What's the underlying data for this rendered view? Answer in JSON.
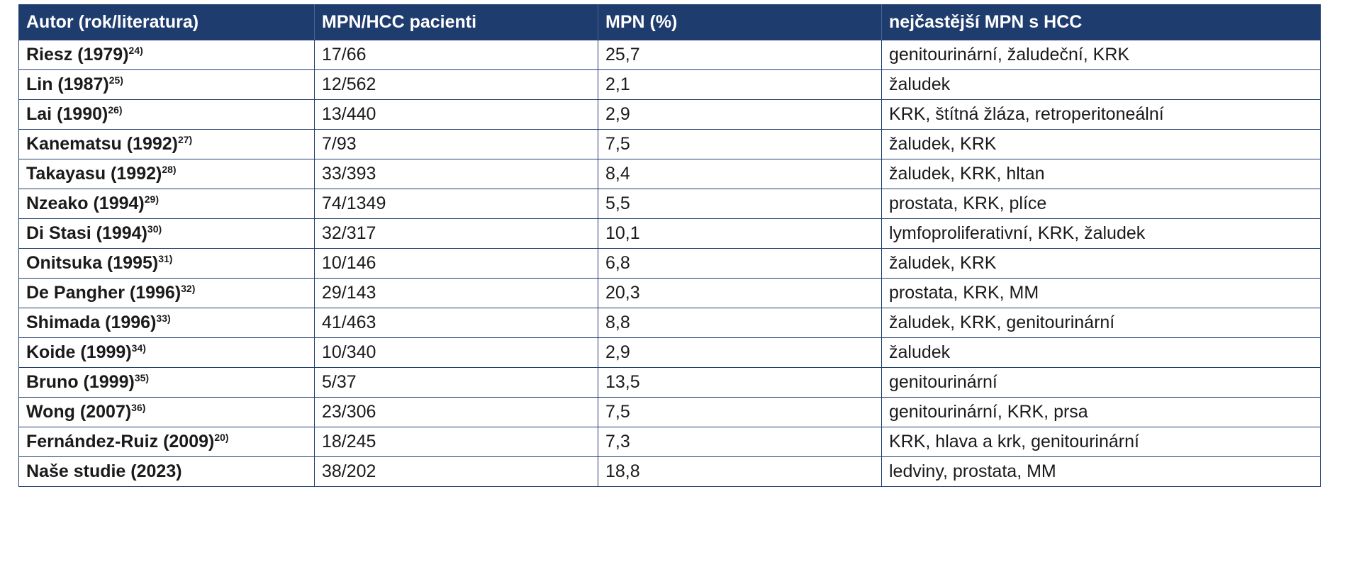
{
  "table": {
    "headers": [
      "Autor (rok/literatura)",
      "MPN/HCC pacienti",
      "MPN (%)",
      "nejčastější MPN s HCC"
    ],
    "rows": [
      {
        "author": "Riesz (1979)",
        "ref": "24)",
        "patients": "17/66",
        "mpn_percent": "25,7",
        "common_mpn": "genitourinární, žaludeční, KRK"
      },
      {
        "author": "Lin (1987)",
        "ref": "25)",
        "patients": "12/562",
        "mpn_percent": "2,1",
        "common_mpn": "žaludek"
      },
      {
        "author": "Lai (1990)",
        "ref": "26)",
        "patients": "13/440",
        "mpn_percent": "2,9",
        "common_mpn": "KRK, štítná žláza, retroperitoneální"
      },
      {
        "author": "Kanematsu (1992)",
        "ref": "27)",
        "patients": "7/93",
        "mpn_percent": "7,5",
        "common_mpn": "žaludek, KRK"
      },
      {
        "author": "Takayasu (1992)",
        "ref": "28)",
        "patients": "33/393",
        "mpn_percent": "8,4",
        "common_mpn": "žaludek, KRK, hltan"
      },
      {
        "author": "Nzeako (1994)",
        "ref": "29)",
        "patients": "74/1349",
        "mpn_percent": "5,5",
        "common_mpn": "prostata, KRK, plíce"
      },
      {
        "author": "Di Stasi (1994)",
        "ref": "30)",
        "patients": "32/317",
        "mpn_percent": "10,1",
        "common_mpn": "lymfoproliferativní, KRK, žaludek"
      },
      {
        "author": "Onitsuka (1995)",
        "ref": "31)",
        "patients": "10/146",
        "mpn_percent": "6,8",
        "common_mpn": "žaludek, KRK"
      },
      {
        "author": "De Pangher (1996)",
        "ref": "32)",
        "patients": "29/143",
        "mpn_percent": "20,3",
        "common_mpn": "prostata, KRK, MM"
      },
      {
        "author": "Shimada (1996)",
        "ref": "33)",
        "patients": "41/463",
        "mpn_percent": "8,8",
        "common_mpn": "žaludek, KRK, genitourinární"
      },
      {
        "author": "Koide (1999)",
        "ref": "34)",
        "patients": "10/340",
        "mpn_percent": "2,9",
        "common_mpn": "žaludek"
      },
      {
        "author": "Bruno (1999)",
        "ref": "35)",
        "patients": "5/37",
        "mpn_percent": "13,5",
        "common_mpn": "genitourinární"
      },
      {
        "author": "Wong (2007)",
        "ref": "36)",
        "patients": "23/306",
        "mpn_percent": "7,5",
        "common_mpn": "genitourinární, KRK, prsa"
      },
      {
        "author": "Fernández-Ruiz (2009)",
        "ref": "20)",
        "patients": "18/245",
        "mpn_percent": "7,3",
        "common_mpn": "KRK, hlava a krk, genitourinární"
      },
      {
        "author": "Naše studie (2023)",
        "ref": "",
        "patients": "38/202",
        "mpn_percent": "18,8",
        "common_mpn": "ledviny, prostata, MM"
      }
    ]
  },
  "colors": {
    "header_bg": "#1f3c6e",
    "header_text": "#ffffff",
    "border": "#1f3c6e"
  }
}
